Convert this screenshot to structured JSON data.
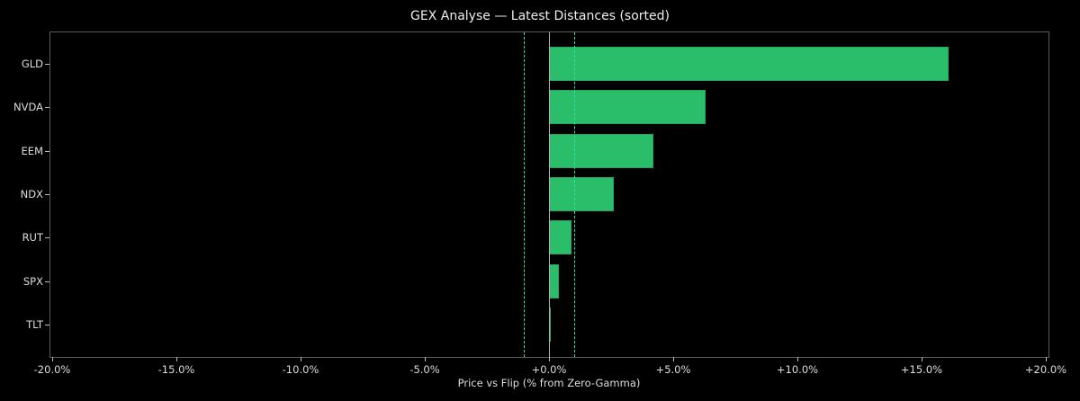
{
  "title": "GEX Analyse — Latest Distances (sorted)",
  "x_axis_title": "Price vs Flip (% from Zero-Gamma)",
  "x_ticks": [
    "-20.0%",
    "-15.0%",
    "-10.0%",
    "-5.0%",
    "+0.0%",
    "+5.0%",
    "+10.0%",
    "+15.0%",
    "+20.0%"
  ],
  "colors": {
    "background": "#000000",
    "bar": "#2abe6a",
    "threshold_line": "#2fe0a0",
    "zero_line": "#b0b0b0",
    "frame": "#5a5a5a",
    "text": "#dddddd"
  },
  "chart_data": {
    "type": "bar",
    "orientation": "horizontal",
    "title": "GEX Analyse — Latest Distances (sorted)",
    "xlabel": "Price vs Flip (% from Zero-Gamma)",
    "ylabel": "",
    "categories": [
      "GLD",
      "NVDA",
      "EEM",
      "NDX",
      "RUT",
      "SPX",
      "TLT"
    ],
    "values": [
      16.1,
      6.3,
      4.2,
      2.6,
      0.9,
      0.4,
      0.05
    ],
    "unit": "%",
    "xlim": [
      -20,
      20
    ],
    "x_tick_values": [
      -20,
      -15,
      -10,
      -5,
      0,
      5,
      10,
      15,
      20
    ],
    "reference_lines": [
      {
        "x": 0,
        "style": "solid",
        "color": "#b0b0b0"
      },
      {
        "x": -1,
        "style": "dashed",
        "color": "#2fe0a0"
      },
      {
        "x": 1,
        "style": "dashed",
        "color": "#2fe0a0"
      }
    ],
    "grid": false,
    "legend": null
  }
}
